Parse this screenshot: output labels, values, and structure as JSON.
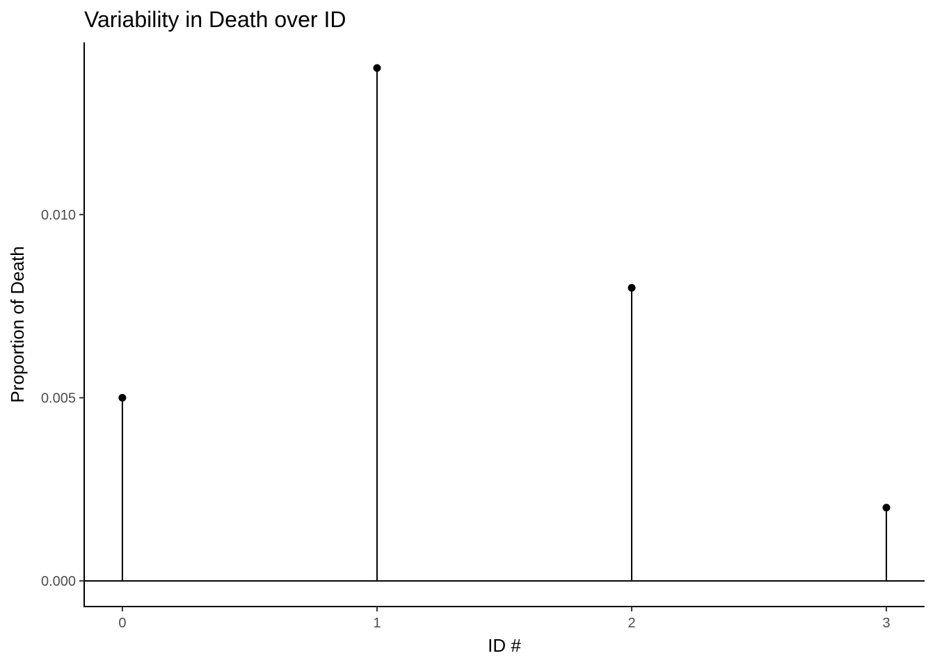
{
  "chart_data": {
    "type": "lollipop",
    "title": "Variability in Death over ID",
    "xlabel": "ID #",
    "ylabel": "Proportion of Death",
    "x": [
      0,
      1,
      2,
      3
    ],
    "values": [
      0.005,
      0.014,
      0.008,
      0.002
    ],
    "xlim": [
      -0.15,
      3.15
    ],
    "ylim": [
      -0.0007,
      0.0147
    ],
    "x_ticks": [
      0,
      1,
      2,
      3
    ],
    "x_tick_labels": [
      "0",
      "1",
      "2",
      "3"
    ],
    "y_ticks": [
      0,
      0.005,
      0.01
    ],
    "y_tick_labels": [
      "0.000",
      "0.005",
      "0.010"
    ],
    "baseline": 0,
    "grid": false,
    "mark_color": "#000000"
  }
}
